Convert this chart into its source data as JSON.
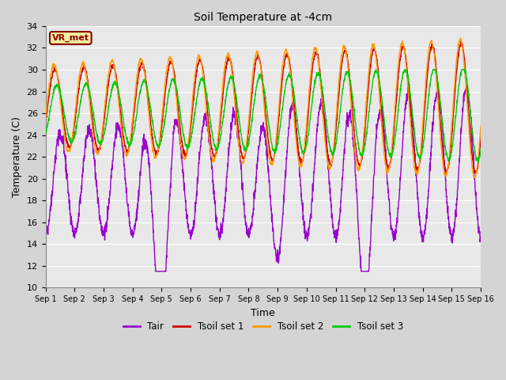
{
  "title": "Soil Temperature at -4cm",
  "xlabel": "Time",
  "ylabel": "Temperature (C)",
  "ylim": [
    10,
    34
  ],
  "yticks": [
    10,
    12,
    14,
    16,
    18,
    20,
    22,
    24,
    26,
    28,
    30,
    32,
    34
  ],
  "n_days": 15,
  "colors": {
    "Tair": "#9900cc",
    "Tsoil1": "#cc0000",
    "Tsoil2": "#ff9900",
    "Tsoil3": "#00cc00"
  },
  "legend_labels": [
    "Tair",
    "Tsoil set 1",
    "Tsoil set 2",
    "Tsoil set 3"
  ],
  "station_label": "VR_met",
  "fig_bg": "#d4d4d4",
  "plot_bg": "#e8e8e8",
  "grid_color": "#ffffff"
}
